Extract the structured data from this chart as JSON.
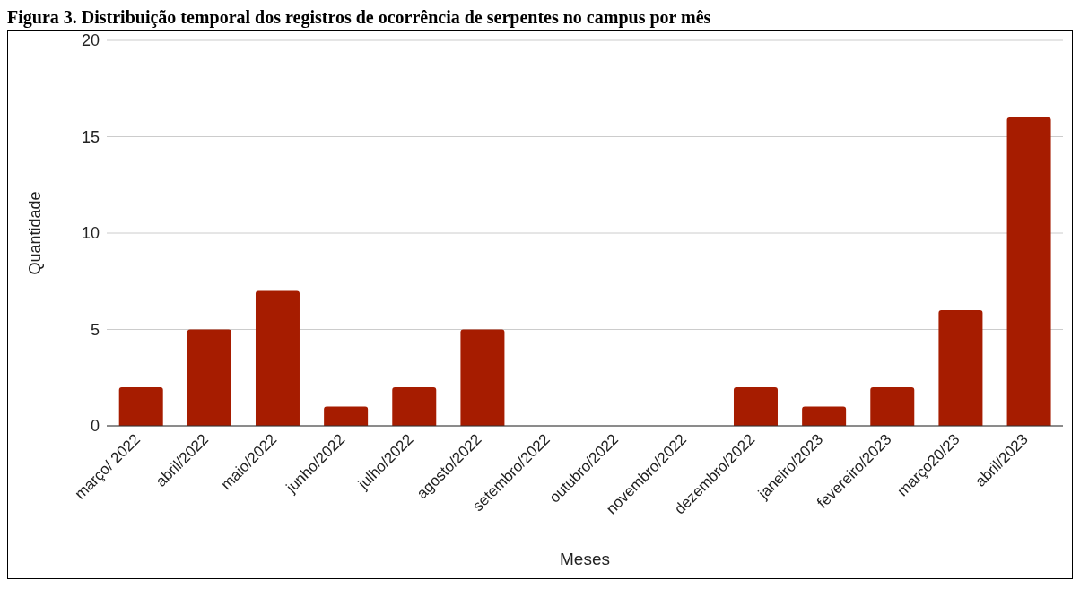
{
  "chart_data": {
    "type": "bar",
    "title": "Figura 3. Distribuição temporal dos registros de ocorrência de serpentes no campus por mês",
    "xlabel": "Meses",
    "ylabel": "Quantidade",
    "categories": [
      "março/ 2022",
      "abril/2022",
      "maio/2022",
      "junho/2022",
      "julho/2022",
      "agosto/2022",
      "setembro/2022",
      "outubro/2022",
      "novembro/2022",
      "dezembro/2022",
      "janeiro/2023",
      "fevereiro/2023",
      "março20/23",
      "abril/2023"
    ],
    "values": [
      2,
      5,
      7,
      1,
      2,
      5,
      0,
      0,
      0,
      2,
      1,
      2,
      6,
      16
    ],
    "color": "#a61c00",
    "ylim": [
      0,
      20
    ],
    "yticks": [
      0,
      5,
      10,
      15,
      20
    ],
    "grid": "y"
  }
}
